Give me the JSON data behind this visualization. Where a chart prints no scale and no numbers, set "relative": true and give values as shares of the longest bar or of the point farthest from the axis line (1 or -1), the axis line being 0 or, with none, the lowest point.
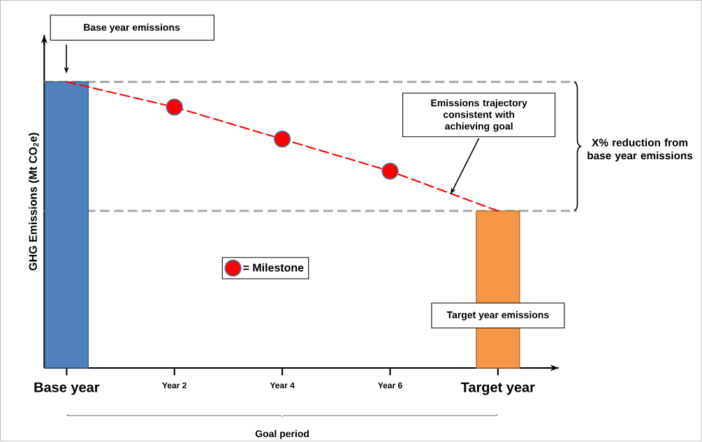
{
  "chart_data": {
    "type": "bar",
    "relative": true,
    "ylabel": "GHG Emissions (Mt CO$_{2}$e)",
    "categories": [
      "Base year",
      "Year 2",
      "Year 4",
      "Year 6",
      "Target year"
    ],
    "series": [
      {
        "colors": [
          "#4f81bd",
          null,
          null,
          null,
          "#f79646"
        ],
        "values": [
          1,
          null,
          null,
          null,
          0.549
        ]
      },
      {
        "type": "line",
        "color": "#ff0000",
        "line_style": "dashed",
        "values": [
          1,
          0.912,
          0.8,
          0.688,
          0.549
        ]
      },
      {
        "type": "scatter",
        "name": "= Milestone",
        "color": "#ff0000",
        "values": [
          null,
          0.912,
          0.8,
          0.688,
          null
        ]
      }
    ],
    "ref_lines": [
      {
        "axis": "y",
        "value": 1,
        "color": "#a6a6a6",
        "line_style": "dashed"
      },
      {
        "axis": "y",
        "value": 0.549,
        "color": "#a6a6a6",
        "line_style": "dashed"
      }
    ],
    "annotations": [
      "Base year emissions",
      "Emissions trajectory consistent with achieving goal",
      "X% reduction from base year emissions",
      "Target year emissions",
      "Goal period"
    ],
    "legend": "center",
    "tick_labels": "x"
  }
}
